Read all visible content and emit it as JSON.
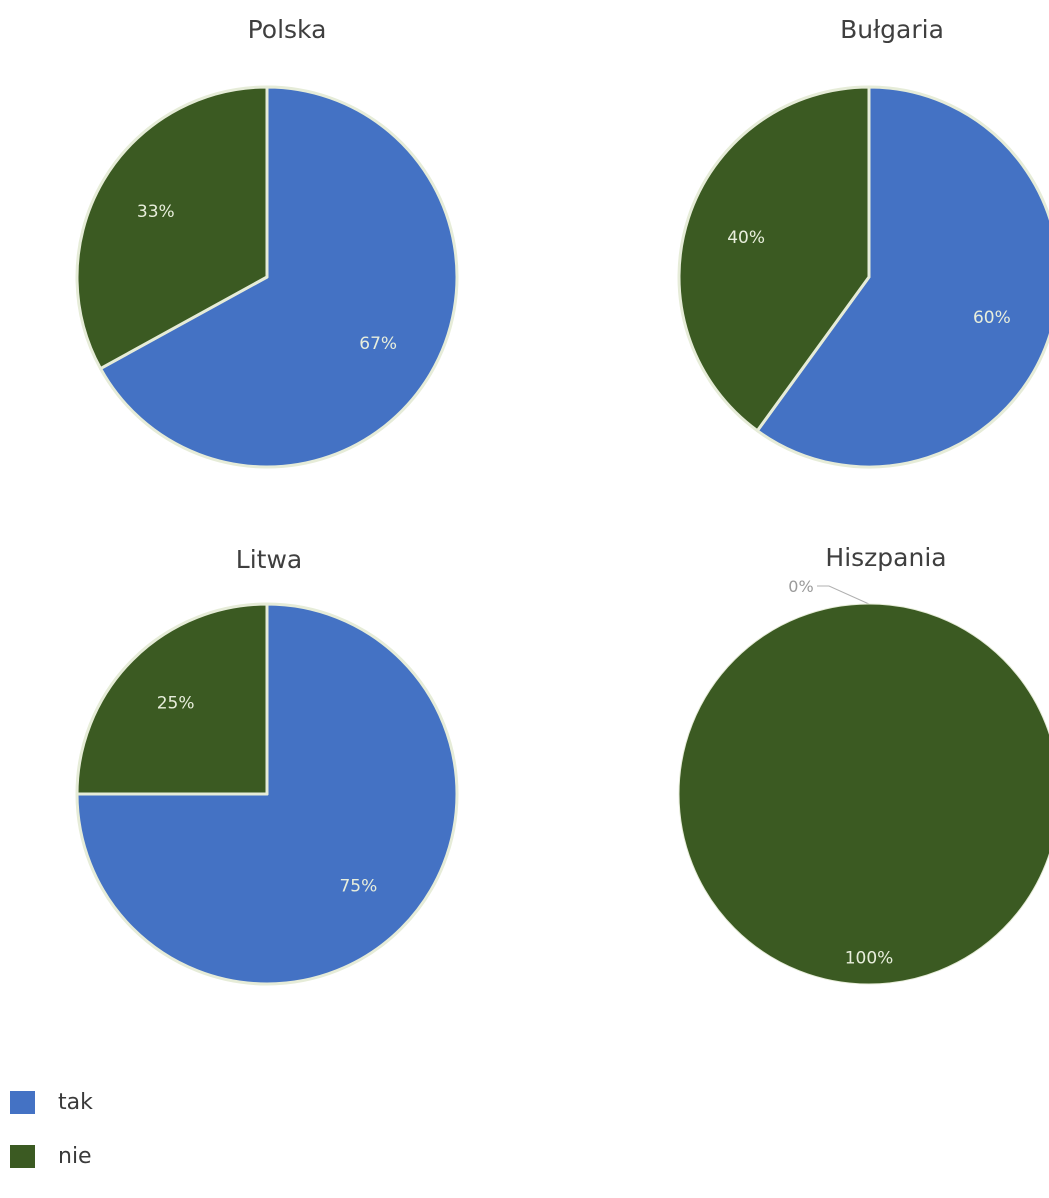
{
  "colors": {
    "tak": "#4472c4",
    "nie": "#3b5a22",
    "slice_border": "#e6ecd8",
    "title": "#3f3f3f",
    "slice_label": "#e8eedc",
    "outside_label": "#9a9a9a"
  },
  "legend": {
    "placement": "bottom-left",
    "items": [
      {
        "label": "tak",
        "color": "#4472c4"
      },
      {
        "label": "nie",
        "color": "#3b5a22"
      }
    ]
  },
  "chart_data": [
    {
      "type": "pie",
      "title": "Polska",
      "labels": [
        "tak",
        "nie"
      ],
      "values": [
        67,
        33
      ],
      "value_labels": [
        "67%",
        "33%"
      ]
    },
    {
      "type": "pie",
      "title": "Bułgaria",
      "labels": [
        "tak",
        "nie"
      ],
      "values": [
        60,
        40
      ],
      "value_labels": [
        "60%",
        "40%"
      ]
    },
    {
      "type": "pie",
      "title": "Litwa",
      "labels": [
        "tak",
        "nie"
      ],
      "values": [
        75,
        25
      ],
      "value_labels": [
        "75%",
        "25%"
      ]
    },
    {
      "type": "pie",
      "title": "Hiszpania",
      "labels": [
        "tak",
        "nie"
      ],
      "values": [
        0,
        100
      ],
      "value_labels": [
        "0%",
        "100%"
      ]
    }
  ]
}
